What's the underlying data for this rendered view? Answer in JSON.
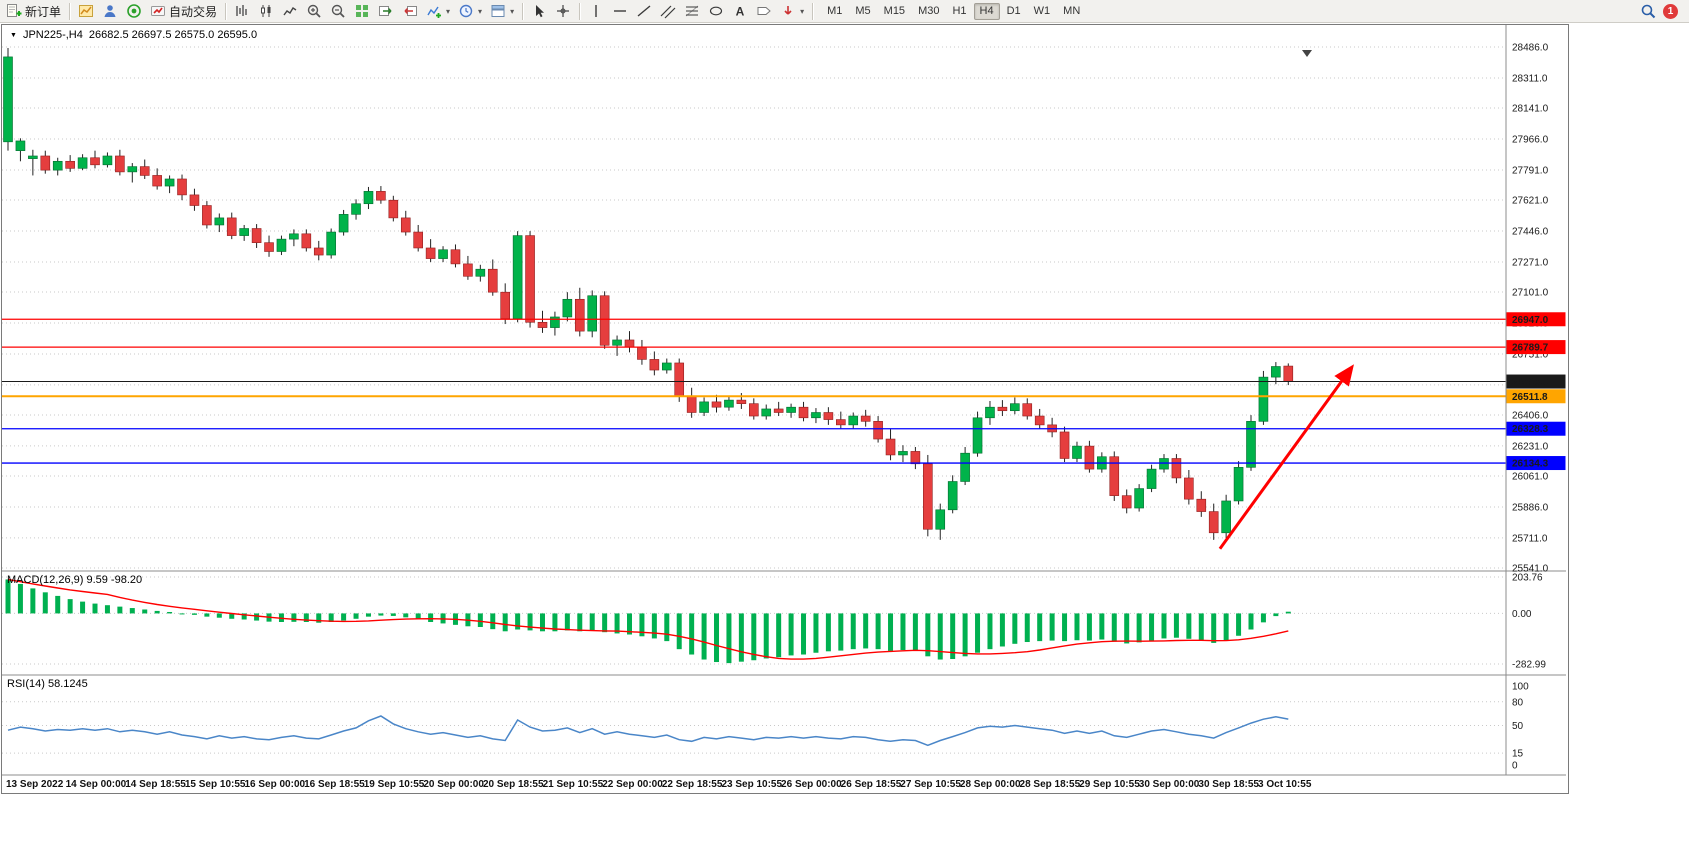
{
  "toolbar": {
    "new_order_label": "新订单",
    "autotrading_label": "自动交易",
    "timeframes": [
      "M1",
      "M5",
      "M15",
      "M30",
      "H1",
      "H4",
      "D1",
      "W1",
      "MN"
    ],
    "active_timeframe": "H4",
    "notification_badge": "1"
  },
  "chart": {
    "symbol_period": "JPN225-,H4",
    "ohlc_text": "26682.5 26697.5 26575.0 26595.0"
  },
  "chart_data": [
    {
      "type": "candlestick",
      "title": "JPN225-,H4",
      "ohlc_display": [
        "26682.5",
        "26697.5",
        "26575.0",
        "26595.0"
      ],
      "colors": {
        "up": "#00B34A",
        "down": "#E53E3E",
        "wick": "#222222"
      },
      "y_ticks": [
        28486.0,
        28311.0,
        28141.0,
        27966.0,
        27791.0,
        27621.0,
        27446.0,
        27271.0,
        27101.0,
        26926.0,
        26751.0,
        26576.0,
        26406.0,
        26231.0,
        26061.0,
        25886.0,
        25711.0,
        25541.0
      ],
      "ylim": [
        25541.0,
        28486.0
      ],
      "x_labels": [
        "13 Sep 2022",
        "14 Sep 00:00",
        "14 Sep 18:55",
        "15 Sep 10:55",
        "16 Sep 00:00",
        "16 Sep 18:55",
        "19 Sep 10:55",
        "20 Sep 00:00",
        "20 Sep 18:55",
        "21 Sep 10:55",
        "22 Sep 00:00",
        "22 Sep 18:55",
        "23 Sep 10:55",
        "26 Sep 00:00",
        "26 Sep 18:55",
        "27 Sep 10:55",
        "28 Sep 00:00",
        "28 Sep 18:55",
        "29 Sep 10:55",
        "30 Sep 00:00",
        "30 Sep 18:55",
        "3 Oct 10:55"
      ],
      "levels": [
        {
          "label": "26947.0",
          "price": 26947.0,
          "color": "#FF0000",
          "width": 1.3
        },
        {
          "label": "26789.7",
          "price": 26789.7,
          "color": "#FF0000",
          "width": 1.3
        },
        {
          "label": "26595.0",
          "price": 26595.0,
          "color": "#1a1a1a",
          "width": 1
        },
        {
          "label": "26511.8",
          "price": 26511.8,
          "color": "#FFA500",
          "width": 2
        },
        {
          "label": "26328.3",
          "price": 26328.3,
          "color": "#0000FF",
          "width": 1.3
        },
        {
          "label": "26134.3",
          "price": 26134.3,
          "color": "#0000FF",
          "width": 1.3
        }
      ],
      "arrow": {
        "from": {
          "index": 97.5,
          "price": 25650
        },
        "to": {
          "index": 108,
          "price": 26665
        },
        "color": "#FF0000"
      },
      "candles": [
        [
          27950,
          28480,
          27900,
          28430
        ],
        [
          27900,
          27970,
          27840,
          27955
        ],
        [
          27855,
          27905,
          27760,
          27870
        ],
        [
          27870,
          27900,
          27770,
          27790
        ],
        [
          27790,
          27860,
          27760,
          27840
        ],
        [
          27840,
          27875,
          27780,
          27800
        ],
        [
          27800,
          27880,
          27790,
          27860
        ],
        [
          27860,
          27900,
          27800,
          27820
        ],
        [
          27820,
          27890,
          27805,
          27870
        ],
        [
          27870,
          27905,
          27760,
          27780
        ],
        [
          27780,
          27830,
          27720,
          27810
        ],
        [
          27810,
          27850,
          27740,
          27760
        ],
        [
          27760,
          27800,
          27680,
          27700
        ],
        [
          27700,
          27760,
          27660,
          27740
        ],
        [
          27740,
          27765,
          27620,
          27650
        ],
        [
          27650,
          27685,
          27560,
          27590
        ],
        [
          27590,
          27615,
          27460,
          27480
        ],
        [
          27480,
          27545,
          27440,
          27520
        ],
        [
          27520,
          27550,
          27400,
          27420
        ],
        [
          27420,
          27480,
          27390,
          27460
        ],
        [
          27460,
          27485,
          27350,
          27380
        ],
        [
          27380,
          27420,
          27300,
          27330
        ],
        [
          27330,
          27420,
          27310,
          27400
        ],
        [
          27400,
          27455,
          27360,
          27430
        ],
        [
          27430,
          27455,
          27330,
          27350
        ],
        [
          27350,
          27390,
          27280,
          27310
        ],
        [
          27310,
          27460,
          27290,
          27440
        ],
        [
          27440,
          27565,
          27420,
          27540
        ],
        [
          27540,
          27625,
          27510,
          27600
        ],
        [
          27600,
          27695,
          27570,
          27670
        ],
        [
          27670,
          27700,
          27600,
          27620
        ],
        [
          27620,
          27645,
          27500,
          27520
        ],
        [
          27520,
          27560,
          27420,
          27440
        ],
        [
          27440,
          27480,
          27330,
          27350
        ],
        [
          27350,
          27400,
          27270,
          27290
        ],
        [
          27290,
          27360,
          27270,
          27340
        ],
        [
          27340,
          27370,
          27240,
          27260
        ],
        [
          27260,
          27305,
          27170,
          27190
        ],
        [
          27190,
          27255,
          27160,
          27230
        ],
        [
          27230,
          27285,
          27080,
          27100
        ],
        [
          27100,
          27150,
          26920,
          26950
        ],
        [
          26950,
          27445,
          26930,
          27420
        ],
        [
          27420,
          27445,
          26900,
          26930
        ],
        [
          26930,
          26995,
          26870,
          26900
        ],
        [
          26900,
          26990,
          26855,
          26960
        ],
        [
          26960,
          27100,
          26935,
          27060
        ],
        [
          27060,
          27125,
          26850,
          26880
        ],
        [
          26880,
          27110,
          26845,
          27080
        ],
        [
          27080,
          27105,
          26780,
          26800
        ],
        [
          26800,
          26855,
          26740,
          26830
        ],
        [
          26830,
          26880,
          26760,
          26790
        ],
        [
          26790,
          26830,
          26690,
          26720
        ],
        [
          26720,
          26765,
          26630,
          26660
        ],
        [
          26660,
          26725,
          26640,
          26700
        ],
        [
          26700,
          26725,
          26480,
          26510
        ],
        [
          26510,
          26560,
          26390,
          26420
        ],
        [
          26420,
          26505,
          26400,
          26480
        ],
        [
          26480,
          26520,
          26420,
          26450
        ],
        [
          26450,
          26510,
          26430,
          26490
        ],
        [
          26490,
          26530,
          26440,
          26470
        ],
        [
          26470,
          26500,
          26380,
          26400
        ],
        [
          26400,
          26465,
          26380,
          26440
        ],
        [
          26440,
          26480,
          26400,
          26420
        ],
        [
          26420,
          26470,
          26390,
          26450
        ],
        [
          26450,
          26480,
          26370,
          26390
        ],
        [
          26390,
          26445,
          26360,
          26420
        ],
        [
          26420,
          26450,
          26350,
          26380
        ],
        [
          26380,
          26425,
          26330,
          26350
        ],
        [
          26350,
          26420,
          26330,
          26400
        ],
        [
          26400,
          26435,
          26340,
          26370
        ],
        [
          26370,
          26400,
          26250,
          26270
        ],
        [
          26270,
          26330,
          26150,
          26180
        ],
        [
          26180,
          26235,
          26140,
          26200
        ],
        [
          26200,
          26225,
          26100,
          26130
        ],
        [
          26130,
          26180,
          25720,
          25760
        ],
        [
          25760,
          25905,
          25700,
          25870
        ],
        [
          25870,
          26065,
          25850,
          26030
        ],
        [
          26030,
          26225,
          26010,
          26190
        ],
        [
          26190,
          26425,
          26170,
          26390
        ],
        [
          26390,
          26485,
          26350,
          26450
        ],
        [
          26450,
          26490,
          26400,
          26430
        ],
        [
          26430,
          26505,
          26410,
          26470
        ],
        [
          26470,
          26500,
          26380,
          26400
        ],
        [
          26400,
          26440,
          26330,
          26350
        ],
        [
          26350,
          26390,
          26280,
          26310
        ],
        [
          26310,
          26340,
          26140,
          26160
        ],
        [
          26160,
          26255,
          26140,
          26230
        ],
        [
          26230,
          26260,
          26080,
          26100
        ],
        [
          26100,
          26195,
          26080,
          26170
        ],
        [
          26170,
          26200,
          25920,
          25950
        ],
        [
          25950,
          25985,
          25850,
          25880
        ],
        [
          25880,
          26015,
          25860,
          25990
        ],
        [
          25990,
          26125,
          25970,
          26100
        ],
        [
          26100,
          26185,
          26080,
          26160
        ],
        [
          26160,
          26185,
          26020,
          26050
        ],
        [
          26050,
          26095,
          25900,
          25930
        ],
        [
          25930,
          25975,
          25830,
          25860
        ],
        [
          25860,
          25905,
          25700,
          25740
        ],
        [
          25740,
          25955,
          25710,
          25920
        ],
        [
          25920,
          26145,
          25900,
          26110
        ],
        [
          26110,
          26405,
          26090,
          26370
        ],
        [
          26370,
          26655,
          26350,
          26620
        ],
        [
          26620,
          26705,
          26580,
          26680
        ],
        [
          26682.5,
          26697.5,
          26575.0,
          26595.0
        ]
      ]
    },
    {
      "type": "bar",
      "name": "MACD(12,26,9)",
      "label": "MACD(12,26,9) 9.59 -98.20",
      "current_main": 9.59,
      "current_signal": -98.2,
      "signal_period": 9,
      "y_ticks": [
        203.76,
        0.0,
        -282.99
      ],
      "colors": {
        "histogram": "#00B050",
        "signal": "#FF0000"
      },
      "values": [
        190,
        165,
        140,
        118,
        98,
        80,
        66,
        55,
        46,
        38,
        30,
        22,
        14,
        8,
        0,
        -8,
        -18,
        -24,
        -30,
        -34,
        -40,
        -46,
        -48,
        -47,
        -48,
        -52,
        -48,
        -40,
        -30,
        -18,
        -12,
        -14,
        -22,
        -34,
        -48,
        -56,
        -64,
        -72,
        -76,
        -88,
        -100,
        -90,
        -95,
        -100,
        -100,
        -95,
        -100,
        -95,
        -105,
        -112,
        -118,
        -128,
        -140,
        -155,
        -200,
        -230,
        -258,
        -272,
        -278,
        -270,
        -262,
        -252,
        -245,
        -235,
        -230,
        -220,
        -212,
        -208,
        -200,
        -196,
        -200,
        -210,
        -205,
        -208,
        -240,
        -258,
        -255,
        -240,
        -220,
        -200,
        -185,
        -170,
        -160,
        -155,
        -152,
        -155,
        -150,
        -152,
        -146,
        -158,
        -168,
        -162,
        -152,
        -140,
        -136,
        -142,
        -152,
        -165,
        -152,
        -125,
        -90,
        -50,
        -15,
        9.59
      ]
    },
    {
      "type": "line",
      "name": "RSI(14)",
      "label": "RSI(14) 58.1245",
      "current": 58.1245,
      "color": "#4a86c8",
      "range": [
        0,
        100
      ],
      "y_ticks": [
        100,
        80,
        50,
        15,
        0
      ],
      "levels_dashed": [
        80,
        50,
        15
      ],
      "values": [
        44,
        48,
        46,
        43,
        45,
        44,
        46,
        44,
        46,
        42,
        44,
        42,
        39,
        42,
        38,
        36,
        33,
        37,
        34,
        36,
        33,
        32,
        35,
        37,
        34,
        33,
        38,
        43,
        47,
        56,
        62,
        52,
        46,
        42,
        39,
        41,
        38,
        35,
        37,
        33,
        31,
        57,
        48,
        43,
        44,
        47,
        41,
        46,
        39,
        42,
        39,
        37,
        35,
        38,
        32,
        30,
        35,
        33,
        36,
        34,
        32,
        35,
        34,
        36,
        34,
        36,
        34,
        33,
        36,
        35,
        32,
        30,
        32,
        31,
        25,
        31,
        36,
        41,
        47,
        49,
        48,
        50,
        48,
        46,
        44,
        40,
        43,
        40,
        43,
        37,
        35,
        39,
        43,
        45,
        42,
        39,
        37,
        34,
        41,
        47,
        53,
        58,
        61,
        58.12
      ]
    }
  ]
}
